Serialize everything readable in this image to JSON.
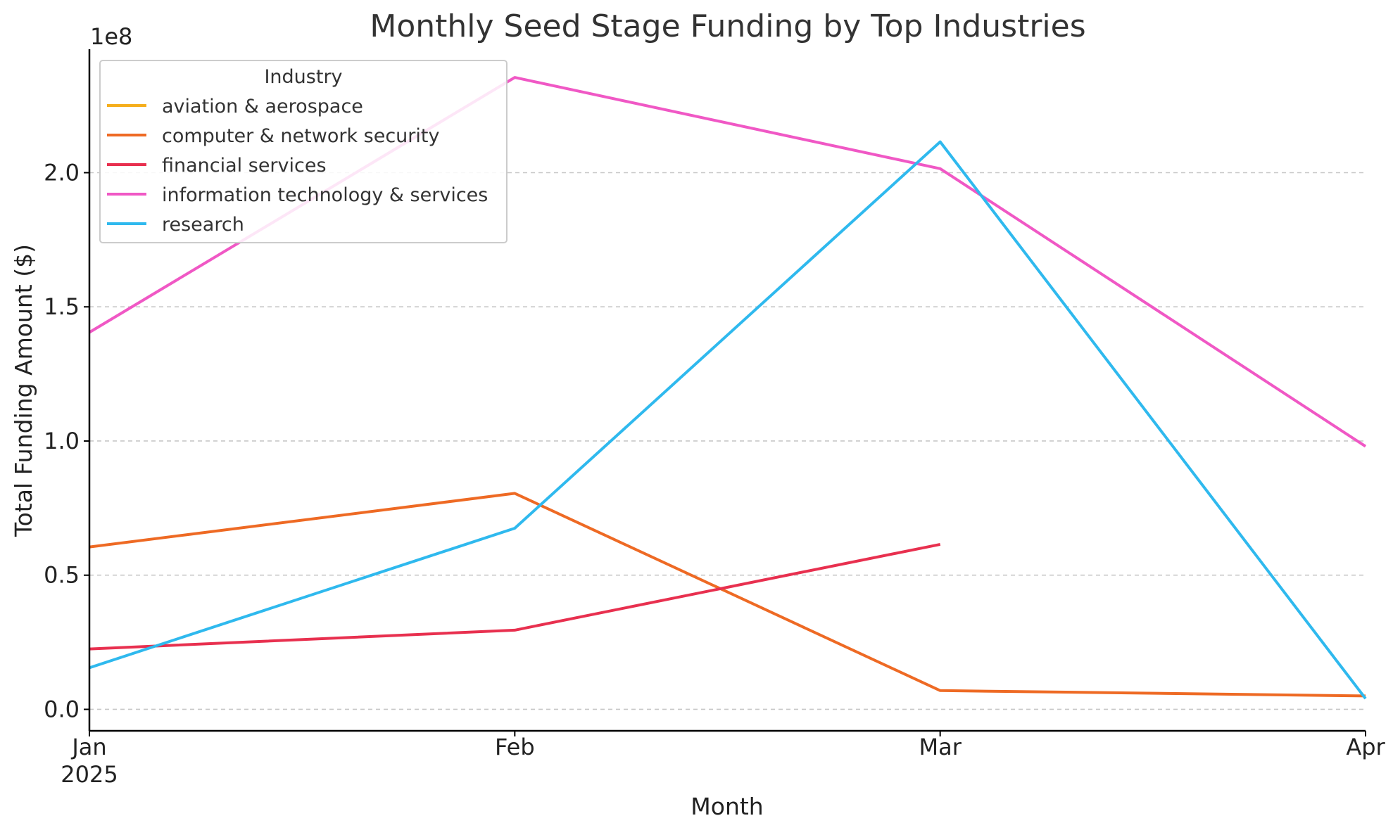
{
  "chart_data": {
    "type": "line",
    "title": "Monthly Seed Stage Funding by Top Industries",
    "xlabel": "Month",
    "ylabel": "Total Funding Amount ($)",
    "y_offset_label": "1e8",
    "x": [
      "2025-01",
      "2025-02",
      "2025-03",
      "2025-04"
    ],
    "x_tick_labels": [
      "Jan",
      "Feb",
      "Mar",
      "Apr"
    ],
    "x_tick_year_label": "2025",
    "ylim": [
      -0.08,
      2.46
    ],
    "y_ticks": [
      0.0,
      0.5,
      1.0,
      1.5,
      2.0
    ],
    "y_tick_labels": [
      "0.0",
      "0.5",
      "1.0",
      "1.5",
      "2.0"
    ],
    "grid": "horizontal dashed",
    "legend": {
      "title": "Industry",
      "placement": "upper-left"
    },
    "series": [
      {
        "name": "aviation & aerospace",
        "color": "#f5ae1c",
        "values": [
          null,
          null,
          null,
          null
        ]
      },
      {
        "name": "computer & network security",
        "color": "#ee6a24",
        "values": [
          0.605,
          0.805,
          0.07,
          0.05
        ]
      },
      {
        "name": "financial services",
        "color": "#e8304f",
        "values": [
          0.225,
          0.295,
          0.615,
          null
        ]
      },
      {
        "name": "information technology & services",
        "color": "#f058c5",
        "values": [
          1.405,
          2.355,
          2.015,
          0.98
        ]
      },
      {
        "name": "research",
        "color": "#2fb9ee",
        "values": [
          0.155,
          0.675,
          2.115,
          0.04
        ]
      }
    ]
  }
}
